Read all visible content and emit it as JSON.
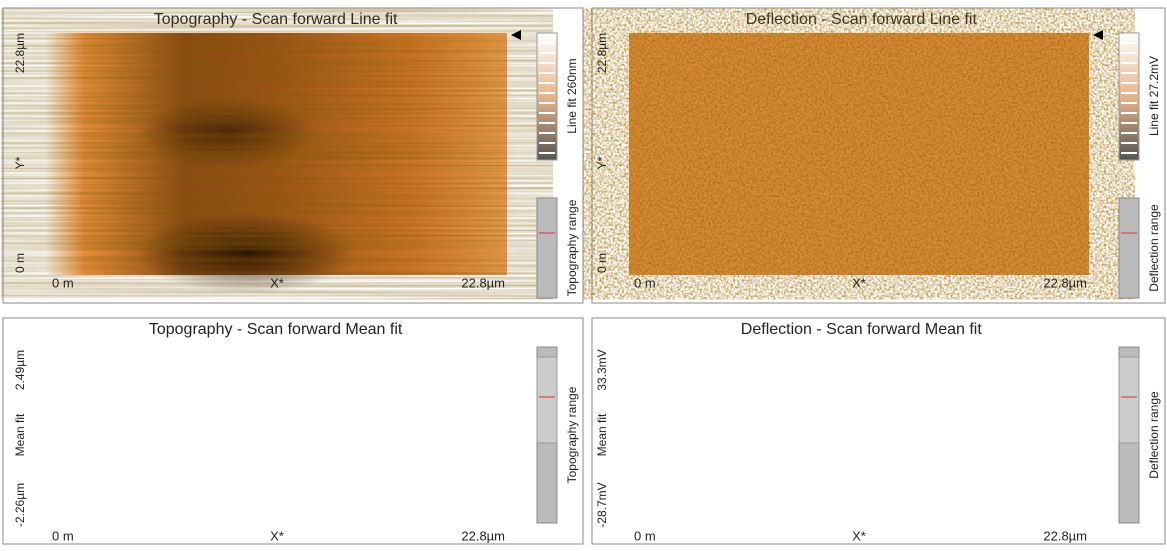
{
  "panels": [
    {
      "title": "Topography - Scan forward   Line fit",
      "y_labels": [
        "22.8µm",
        "Y*",
        "0 m"
      ],
      "x_labels": [
        "0 m",
        "X*",
        "22.8µm"
      ],
      "scale_labels": [
        "Line fit 260nm",
        "Topography range"
      ]
    },
    {
      "title": "Deflection - Scan forward   Line fit",
      "y_labels": [
        "22.8µm",
        "Y*",
        "0 m"
      ],
      "x_labels": [
        "0 m",
        "X*",
        "22.8µm"
      ],
      "scale_labels": [
        "Line fit 27.2mV",
        "Deflection range"
      ]
    },
    {
      "title": "Topography - Scan forward   Mean fit",
      "y_labels": [
        "2.49µm",
        "Mean fit",
        "-2.26µm"
      ],
      "x_labels": [
        "0 m",
        "X*",
        "22.8µm"
      ],
      "scale_labels": [
        "Topography range"
      ]
    },
    {
      "title": "Deflection - Scan forward   Mean fit",
      "y_labels": [
        "33.3mV",
        "Mean fit",
        "-28.7mV"
      ],
      "x_labels": [
        "0 m",
        "X*",
        "22.8µm"
      ],
      "scale_labels": [
        "Deflection range"
      ]
    }
  ]
}
